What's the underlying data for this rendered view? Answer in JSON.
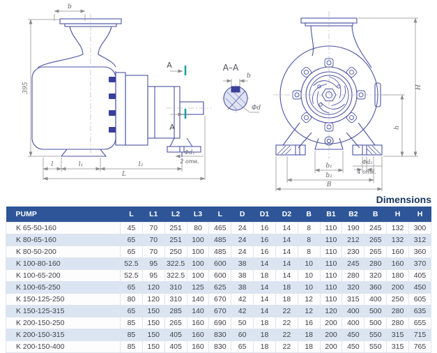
{
  "drawing": {
    "side_view": {
      "dim_b": "b",
      "dim_height": "395",
      "dim_l": "l",
      "dim_l1": "l₁",
      "dim_l2": "l₂",
      "dim_L": "L",
      "hole_label": "Φd₁",
      "hole_note": "2 отв.",
      "section_letter_top": "A",
      "section_letter_bottom": "A"
    },
    "section_aa": {
      "title": "A–A",
      "dim_b": "b",
      "dim_d": "Φd"
    },
    "front_view": {
      "dim_H": "H",
      "dim_h": "h",
      "dim_b1": "b₁",
      "dim_b2": "b₂",
      "dim_B": "B",
      "hole_label": "Φd₂",
      "hole_note": "4 отв."
    }
  },
  "table": {
    "title": "Dimensions",
    "headers": [
      "PUMP",
      "L",
      "L1",
      "L2",
      "L3",
      "L",
      "D",
      "D1",
      "D2",
      "B",
      "B1",
      "B2",
      "B",
      "H",
      "H"
    ],
    "rows": [
      [
        "K 65-50-160",
        "45",
        "70",
        "251",
        "80",
        "465",
        "24",
        "16",
        "14",
        "8",
        "110",
        "190",
        "245",
        "132",
        "300"
      ],
      [
        "K 80-65-160",
        "65",
        "70",
        "251",
        "100",
        "485",
        "24",
        "16",
        "14",
        "8",
        "110",
        "212",
        "265",
        "132",
        "312"
      ],
      [
        "K 80-50-200",
        "65",
        "70",
        "250",
        "100",
        "485",
        "24",
        "16",
        "14",
        "8",
        "110",
        "230",
        "265",
        "160",
        "360"
      ],
      [
        "K 100-80-160",
        "52.5",
        "95",
        "322.5",
        "100",
        "600",
        "38",
        "14",
        "14",
        "10",
        "110",
        "245",
        "280",
        "160",
        "370"
      ],
      [
        "K 100-65-200",
        "52.5",
        "95",
        "322.5",
        "100",
        "600",
        "38",
        "18",
        "14",
        "10",
        "110",
        "280",
        "320",
        "180",
        "405"
      ],
      [
        "K 100-65-250",
        "65",
        "120",
        "310",
        "125",
        "625",
        "38",
        "14",
        "18",
        "10",
        "110",
        "320",
        "360",
        "200",
        "450"
      ],
      [
        "K 150-125-250",
        "80",
        "120",
        "310",
        "140",
        "670",
        "42",
        "14",
        "18",
        "12",
        "110",
        "315",
        "400",
        "250",
        "605"
      ],
      [
        "K 150-125-315",
        "65",
        "150",
        "285",
        "140",
        "670",
        "42",
        "14",
        "22",
        "12",
        "120",
        "400",
        "500",
        "280",
        "635"
      ],
      [
        "K 200-150-250",
        "85",
        "150",
        "265",
        "160",
        "690",
        "50",
        "18",
        "22",
        "16",
        "200",
        "400",
        "500",
        "280",
        "655"
      ],
      [
        "K 200-150-315",
        "85",
        "150",
        "405",
        "160",
        "830",
        "60",
        "18",
        "22",
        "18",
        "200",
        "450",
        "550",
        "315",
        "715"
      ],
      [
        "K 200-150-400",
        "85",
        "150",
        "405",
        "160",
        "830",
        "65",
        "18",
        "22",
        "18",
        "200",
        "450",
        "550",
        "315",
        "765"
      ]
    ]
  }
}
